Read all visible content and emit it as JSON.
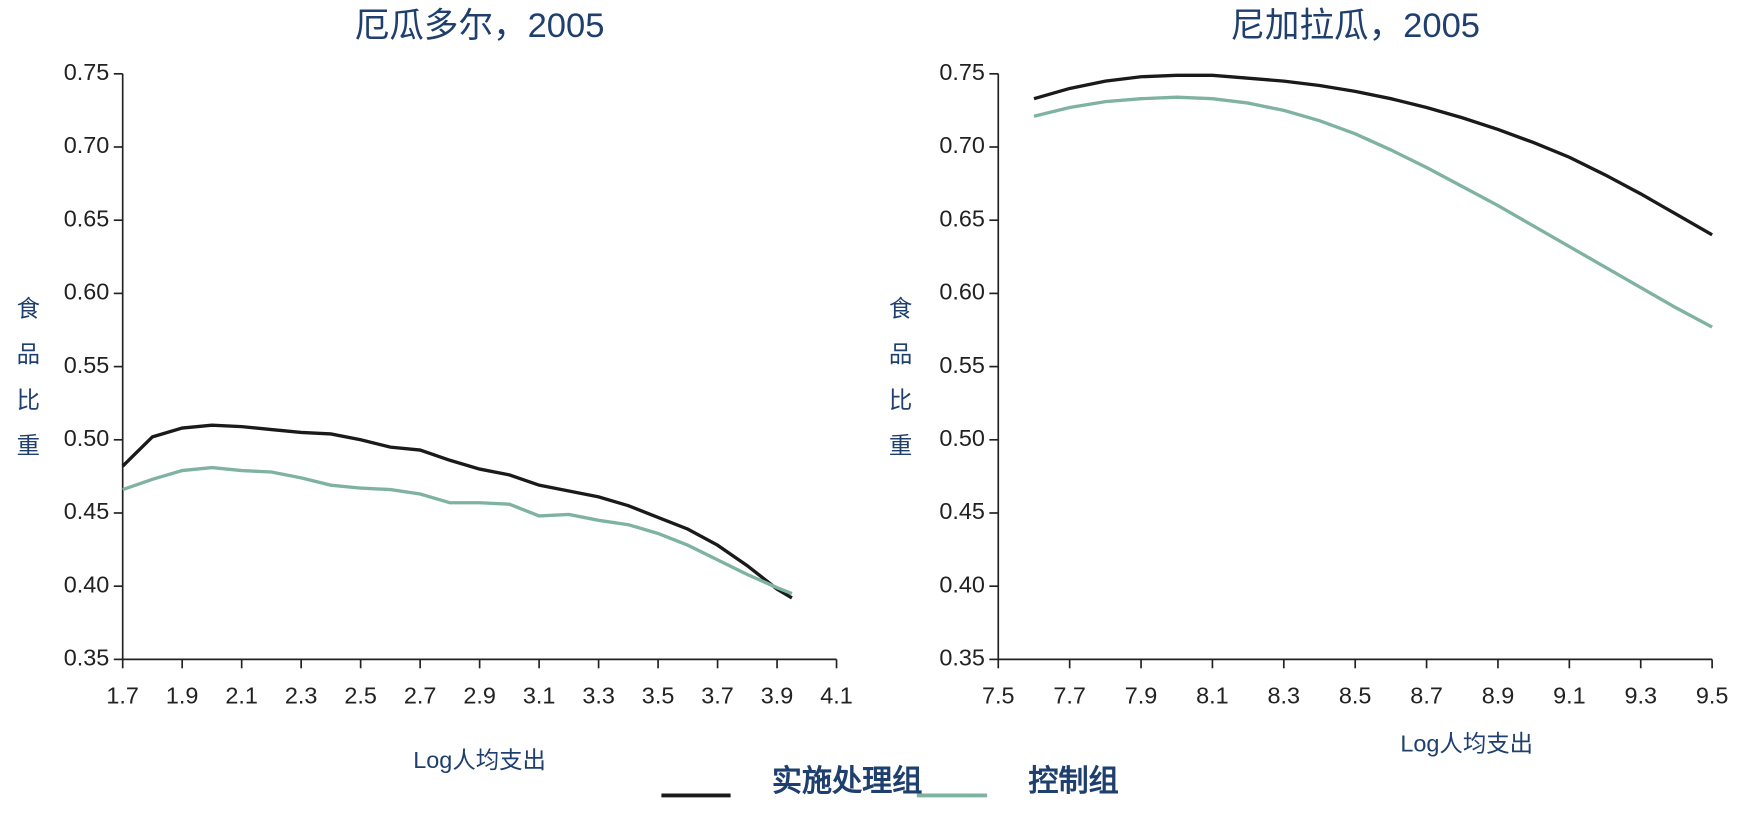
{
  "chart_data": [
    {
      "type": "line",
      "title": "厄瓜多尔，2005",
      "xlabel": "Log人均支出",
      "ylabel": "食品比重",
      "x": [
        1.7,
        1.8,
        1.9,
        2.0,
        2.1,
        2.2,
        2.3,
        2.4,
        2.5,
        2.6,
        2.7,
        2.8,
        2.9,
        3.0,
        3.1,
        3.2,
        3.3,
        3.4,
        3.5,
        3.6,
        3.7,
        3.8,
        3.9,
        3.95
      ],
      "series": [
        {
          "color": "#1a1a1a",
          "values": [
            0.482,
            0.502,
            0.508,
            0.51,
            0.509,
            0.507,
            0.505,
            0.504,
            0.5,
            0.495,
            0.493,
            0.486,
            0.48,
            0.476,
            0.469,
            0.465,
            0.461,
            0.455,
            0.447,
            0.439,
            0.428,
            0.414,
            0.398,
            0.392
          ]
        },
        {
          "color": "#7fb3a0",
          "values": [
            0.466,
            0.473,
            0.479,
            0.481,
            0.479,
            0.478,
            0.474,
            0.469,
            0.467,
            0.466,
            0.463,
            0.457,
            0.457,
            0.456,
            0.448,
            0.449,
            0.445,
            0.442,
            0.436,
            0.428,
            0.418,
            0.408,
            0.399,
            0.395
          ]
        }
      ],
      "xlim": [
        1.7,
        4.1
      ],
      "xticks": [
        1.7,
        1.9,
        2.1,
        2.3,
        2.5,
        2.7,
        2.9,
        3.1,
        3.3,
        3.5,
        3.7,
        3.9,
        4.1
      ],
      "ylim": [
        0.35,
        0.75
      ],
      "yticks": [
        0.35,
        {
          "value": 0.4,
          "label": "0.40"
        },
        0.45,
        {
          "value": 0.5,
          "label": "0.50"
        },
        0.55,
        {
          "value": 0.6,
          "label": "0.60"
        },
        0.65,
        {
          "value": 0.7,
          "label": "0.70"
        },
        0.75
      ]
    },
    {
      "type": "line",
      "title": "尼加拉瓜，2005",
      "xlabel": "Log人均支出",
      "ylabel": "食品比重",
      "x": [
        7.6,
        7.7,
        7.8,
        7.9,
        8.0,
        8.1,
        8.2,
        8.3,
        8.4,
        8.5,
        8.6,
        8.7,
        8.8,
        8.9,
        9.0,
        9.1,
        9.2,
        9.3,
        9.4,
        9.5
      ],
      "series": [
        {
          "color": "#1a1a1a",
          "values": [
            0.733,
            0.74,
            0.745,
            0.748,
            0.749,
            0.749,
            0.747,
            0.745,
            0.742,
            0.738,
            0.733,
            0.727,
            0.72,
            0.712,
            0.703,
            0.693,
            0.681,
            0.668,
            0.654,
            0.64
          ]
        },
        {
          "color": "#7fb3a0",
          "values": [
            0.721,
            0.727,
            0.731,
            0.733,
            0.734,
            0.733,
            0.73,
            0.725,
            0.718,
            0.709,
            0.698,
            0.686,
            0.673,
            0.66,
            0.646,
            0.632,
            0.618,
            0.604,
            0.59,
            0.577
          ]
        }
      ],
      "xlim": [
        7.5,
        9.5
      ],
      "xticks": [
        7.5,
        7.7,
        7.9,
        8.1,
        8.3,
        8.5,
        8.7,
        8.9,
        9.1,
        9.3,
        9.5
      ],
      "ylim": [
        0.35,
        0.75
      ],
      "yticks": [
        0.35,
        {
          "value": 0.4,
          "label": "0.40"
        },
        0.45,
        {
          "value": 0.5,
          "label": "0.50"
        },
        0.55,
        {
          "value": 0.6,
          "label": "0.60"
        },
        0.65,
        {
          "value": 0.7,
          "label": "0.70"
        },
        0.75
      ]
    }
  ],
  "legend": [
    {
      "name": "实施处理组",
      "color": "#1a1a1a"
    },
    {
      "name": "控制组",
      "color": "#7fb3a0"
    }
  ]
}
